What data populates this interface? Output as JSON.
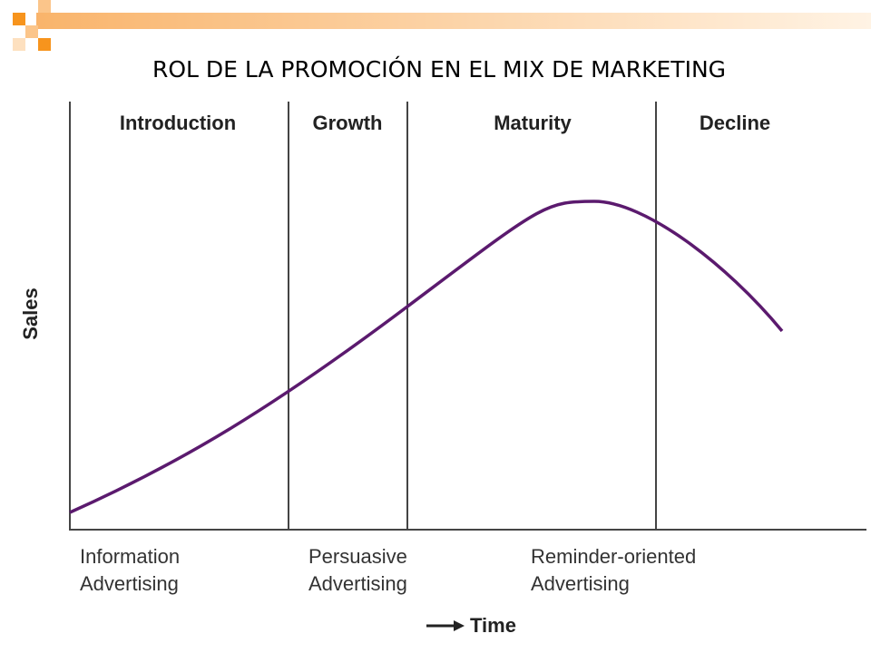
{
  "title": "ROL DE LA PROMOCIÓN EN EL MIX DE MARKETING",
  "axes": {
    "y_label": "Sales",
    "x_label": "Time"
  },
  "stages": [
    "Introduction",
    "Growth",
    "Maturity",
    "Decline"
  ],
  "advertising": [
    [
      "Information",
      "Advertising"
    ],
    [
      "Persuasive",
      "Advertising"
    ],
    [
      "Reminder-oriented",
      "Advertising"
    ]
  ]
}
